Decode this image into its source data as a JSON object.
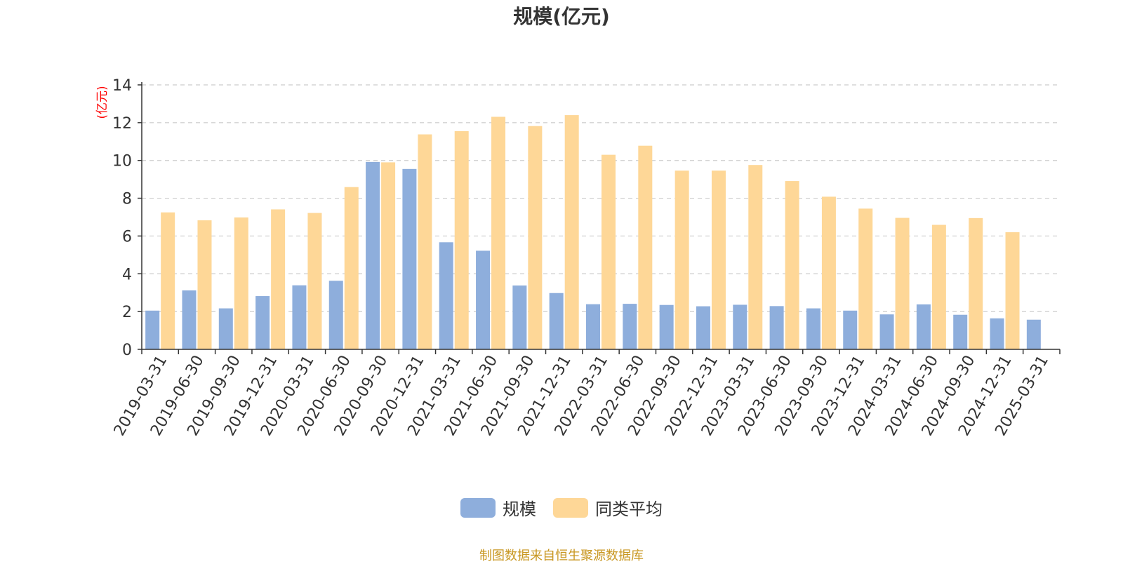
{
  "colors": {
    "series1": "#8eaedc",
    "series2": "#fed797",
    "grid": "#cccccc",
    "axis": "#333333",
    "unit": "#ff0000",
    "footer": "#c8961f"
  },
  "legend_items": [
    {
      "label": "规模"
    },
    {
      "label": "同类平均"
    }
  ],
  "footer": "制图数据来自恒生聚源数据库",
  "chart_data": {
    "type": "bar",
    "title": "规模(亿元)",
    "ylabel": "(亿元)",
    "xlabel": "",
    "ylim": [
      0,
      14
    ],
    "yticks": [
      0,
      2,
      4,
      6,
      8,
      10,
      12,
      14
    ],
    "grid": true,
    "legend_position": "bottom",
    "categories": [
      "2019-03-31",
      "2019-06-30",
      "2019-09-30",
      "2019-12-31",
      "2020-03-31",
      "2020-06-30",
      "2020-09-30",
      "2020-12-31",
      "2021-03-31",
      "2021-06-30",
      "2021-09-30",
      "2021-12-31",
      "2022-03-31",
      "2022-06-30",
      "2022-09-30",
      "2022-12-31",
      "2023-03-31",
      "2023-06-30",
      "2023-09-30",
      "2023-12-31",
      "2024-03-31",
      "2024-06-30",
      "2024-09-30",
      "2024-12-31",
      "2025-03-31"
    ],
    "series": [
      {
        "name": "规模",
        "values": [
          2.05,
          3.12,
          2.17,
          2.82,
          3.39,
          3.63,
          9.92,
          9.55,
          5.67,
          5.22,
          3.38,
          2.98,
          2.39,
          2.41,
          2.35,
          2.28,
          2.36,
          2.29,
          2.17,
          2.05,
          1.85,
          2.38,
          1.83,
          1.64,
          1.57
        ]
      },
      {
        "name": "同类平均",
        "values": [
          7.25,
          6.83,
          6.98,
          7.41,
          7.22,
          8.59,
          9.9,
          11.38,
          11.55,
          12.31,
          11.82,
          12.4,
          10.3,
          10.78,
          9.46,
          9.46,
          9.76,
          8.91,
          8.08,
          7.45,
          6.96,
          6.59,
          6.95,
          6.2,
          null
        ]
      }
    ]
  }
}
